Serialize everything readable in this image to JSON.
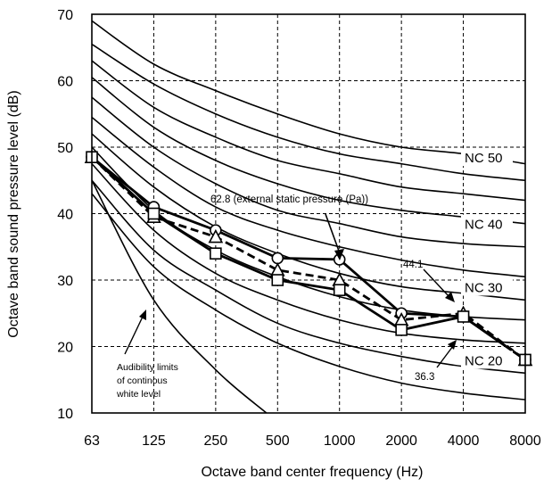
{
  "chart_data": {
    "type": "line",
    "xlabel": "Octave band center frequency (Hz)",
    "ylabel": "Octave band sound pressure level (dB)",
    "x_categories": [
      "63",
      "125",
      "250",
      "500",
      "1000",
      "2000",
      "4000",
      "8000"
    ],
    "y_ticks": [
      "10",
      "20",
      "30",
      "40",
      "50",
      "60",
      "70"
    ],
    "ylim": [
      10,
      70
    ],
    "grid": true,
    "nc_curves": [
      {
        "values": [
          69,
          62.5,
          58.5,
          55,
          52,
          50,
          49,
          47.5
        ]
      },
      {
        "values": [
          65.5,
          59.5,
          55,
          51.5,
          49,
          47.5,
          46,
          45
        ]
      },
      {
        "values": [
          63,
          56,
          51.5,
          48,
          46,
          44,
          43,
          42
        ]
      },
      {
        "values": [
          60.5,
          53,
          48,
          44.5,
          42,
          40.5,
          39.5,
          38.5
        ]
      },
      {
        "values": [
          57.5,
          50,
          44.5,
          40.5,
          38.5,
          36.5,
          35.5,
          35
        ]
      },
      {
        "values": [
          54.5,
          47,
          41,
          37.5,
          35,
          33,
          31.5,
          30.5
        ]
      },
      {
        "values": [
          52,
          44,
          38,
          34,
          31,
          29,
          28,
          27
        ]
      },
      {
        "values": [
          50,
          40.5,
          34.5,
          30.5,
          27.5,
          25.5,
          24.5,
          24
        ]
      },
      {
        "values": [
          47.5,
          37.5,
          31,
          27,
          24,
          22,
          21,
          20.5
        ]
      },
      {
        "values": [
          45,
          34.5,
          28.5,
          23.5,
          20.5,
          18.5,
          17,
          16
        ]
      },
      {
        "values": [
          43,
          32,
          25.5,
          20.5,
          17,
          14.5,
          13,
          12
        ]
      }
    ],
    "audibility_curve": {
      "x": [
        0,
        1,
        2,
        2.82
      ],
      "values": [
        45,
        27,
        16.5,
        10
      ]
    },
    "nc_labels": [
      {
        "text": "NC 50",
        "y": 48.5
      },
      {
        "text": "NC 40",
        "y": 38.5
      },
      {
        "text": "NC 30",
        "y": 29
      },
      {
        "text": "NC 20",
        "y": 18
      }
    ],
    "series": [
      {
        "marker": "circle",
        "dash": false,
        "values": [
          48.5,
          41,
          37.5,
          33.3,
          33.1,
          25,
          24.5,
          18
        ]
      },
      {
        "marker": "triangle",
        "dash": true,
        "values": [
          48.5,
          39.5,
          36.5,
          31.5,
          30,
          24,
          25,
          18
        ]
      },
      {
        "marker": "square",
        "dash": false,
        "values": [
          48.5,
          40,
          34,
          30,
          28.5,
          22.5,
          24.5,
          18
        ]
      }
    ],
    "annotations": {
      "static_pressure": "62.8 (external static pressure (Pa))",
      "value_44": "44.1",
      "value_36": "36.3",
      "audibility": [
        "Audibility limits",
        "of continous",
        "white level"
      ]
    }
  }
}
